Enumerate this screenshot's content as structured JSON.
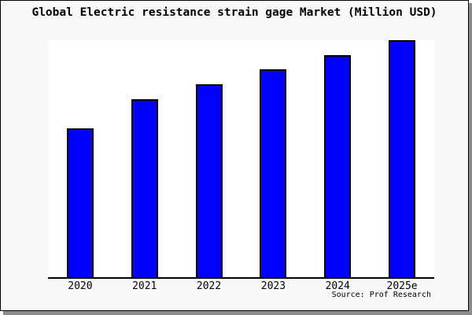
{
  "title": "Global Electric resistance strain gage Market (Million USD)",
  "source_note": "Source: Prof Research",
  "colors": {
    "bar_fill": "#0000ff",
    "bar_outline": "#000000",
    "axis": "#000000",
    "frame_background": "#f8f8f8",
    "plot_background": "#ffffff",
    "frame_border": "#000000",
    "shadow": "#8b8b8b",
    "text": "#000000"
  },
  "chart_data": {
    "type": "bar",
    "title": "Global Electric resistance strain gage Market (Million USD)",
    "categories": [
      "2020",
      "2021",
      "2022",
      "2023",
      "2024",
      "2025e"
    ],
    "values": [
      62.7,
      75.1,
      81.4,
      87.7,
      93.7,
      100
    ],
    "units": "relative height, % of tallest bar (no y-axis tick values shown in image)",
    "xlabel": "",
    "ylabel": "",
    "ylim": [
      0,
      100
    ],
    "grid": false,
    "legend": false,
    "y_axis_visible": false,
    "annotation": "Source: Prof Research"
  }
}
